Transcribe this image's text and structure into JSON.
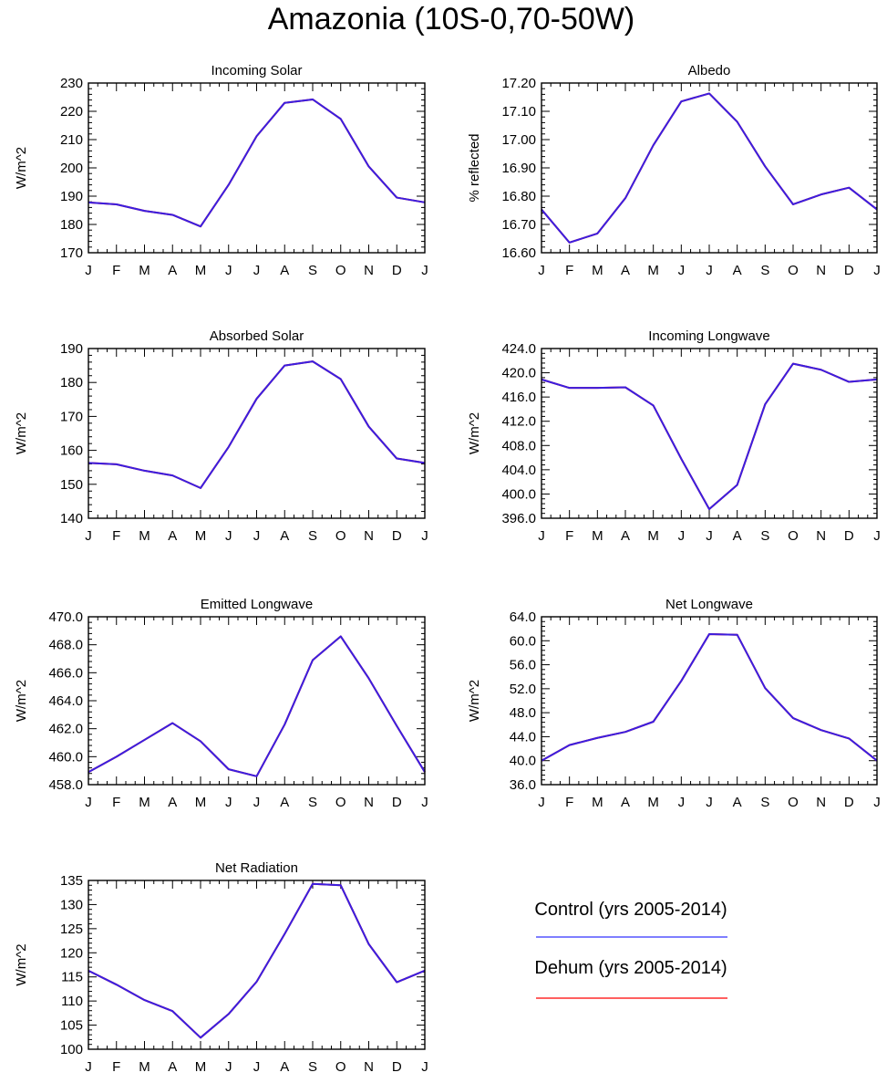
{
  "figure_title": "Amazonia (10S-0,70-50W)",
  "months": [
    "J",
    "F",
    "M",
    "A",
    "M",
    "J",
    "J",
    "A",
    "S",
    "O",
    "N",
    "D",
    "J"
  ],
  "legend": {
    "entries": [
      {
        "label": "Control (yrs 2005-2014)",
        "color": "#3333ff"
      },
      {
        "label": "Dehum (yrs 2005-2014)",
        "color": "#ff0000"
      }
    ]
  },
  "chart_data": [
    {
      "type": "line",
      "title": "Incoming Solar",
      "ylabel": "W/m^2",
      "ylim": [
        170,
        230
      ],
      "yticks": [
        170,
        180,
        190,
        200,
        210,
        220,
        230
      ],
      "ytick_labels": [
        "170",
        "180",
        "190",
        "200",
        "210",
        "220",
        "230"
      ],
      "ymajor_step": 10,
      "yminor_step": 2,
      "categories": [
        "J",
        "F",
        "M",
        "A",
        "M",
        "J",
        "J",
        "A",
        "S",
        "O",
        "N",
        "D",
        "J"
      ],
      "series": [
        {
          "name": "Control (yrs 2005-2014)",
          "color": "#3333ff",
          "values": [
            187.8,
            187.1,
            184.8,
            183.4,
            179.3,
            194.0,
            211.2,
            223.0,
            224.2,
            217.3,
            200.5,
            189.5,
            187.8
          ]
        },
        {
          "name": "Dehum (yrs 2005-2014)",
          "color": "#ff0000",
          "values": [
            187.8,
            187.1,
            184.8,
            183.4,
            179.3,
            194.0,
            211.2,
            223.0,
            224.2,
            217.3,
            200.5,
            189.5,
            187.8
          ]
        }
      ]
    },
    {
      "type": "line",
      "title": "Albedo",
      "ylabel": "% reflected",
      "ylim": [
        16.6,
        17.2
      ],
      "yticks": [
        16.6,
        16.7,
        16.8,
        16.9,
        17.0,
        17.1,
        17.2
      ],
      "ytick_labels": [
        "16.60",
        "16.70",
        "16.80",
        "16.90",
        "17.00",
        "17.10",
        "17.20"
      ],
      "ymajor_step": 0.1,
      "yminor_step": 0.02,
      "categories": [
        "J",
        "F",
        "M",
        "A",
        "M",
        "J",
        "J",
        "A",
        "S",
        "O",
        "N",
        "D",
        "J"
      ],
      "series": [
        {
          "name": "Control (yrs 2005-2014)",
          "color": "#3333ff",
          "values": [
            16.753,
            16.636,
            16.668,
            16.793,
            16.98,
            17.135,
            17.163,
            17.063,
            16.905,
            16.771,
            16.806,
            16.83,
            16.753
          ]
        },
        {
          "name": "Dehum (yrs 2005-2014)",
          "color": "#ff0000",
          "values": [
            16.753,
            16.636,
            16.668,
            16.793,
            16.98,
            17.135,
            17.163,
            17.063,
            16.905,
            16.771,
            16.806,
            16.83,
            16.753
          ]
        }
      ]
    },
    {
      "type": "line",
      "title": "Absorbed Solar",
      "ylabel": "W/m^2",
      "ylim": [
        140,
        190
      ],
      "yticks": [
        140,
        150,
        160,
        170,
        180,
        190
      ],
      "ytick_labels": [
        "140",
        "150",
        "160",
        "170",
        "180",
        "190"
      ],
      "ymajor_step": 10,
      "yminor_step": 2,
      "categories": [
        "J",
        "F",
        "M",
        "A",
        "M",
        "J",
        "J",
        "A",
        "S",
        "O",
        "N",
        "D",
        "J"
      ],
      "series": [
        {
          "name": "Control (yrs 2005-2014)",
          "color": "#3333ff",
          "values": [
            156.3,
            155.9,
            154.0,
            152.6,
            148.9,
            161.0,
            175.2,
            185.0,
            186.2,
            181.0,
            167.0,
            157.6,
            156.3
          ]
        },
        {
          "name": "Dehum (yrs 2005-2014)",
          "color": "#ff0000",
          "values": [
            156.3,
            155.9,
            154.0,
            152.6,
            148.9,
            161.0,
            175.2,
            185.0,
            186.2,
            181.0,
            167.0,
            157.6,
            156.3
          ]
        }
      ]
    },
    {
      "type": "line",
      "title": "Incoming Longwave",
      "ylabel": "W/m^2",
      "ylim": [
        396,
        424
      ],
      "yticks": [
        396,
        400,
        404,
        408,
        412,
        416,
        420,
        424
      ],
      "ytick_labels": [
        "396.0",
        "400.0",
        "404.0",
        "408.0",
        "412.0",
        "416.0",
        "420.0",
        "424.0"
      ],
      "ymajor_step": 4,
      "yminor_step": 0.8,
      "categories": [
        "J",
        "F",
        "M",
        "A",
        "M",
        "J",
        "J",
        "A",
        "S",
        "O",
        "N",
        "D",
        "J"
      ],
      "series": [
        {
          "name": "Control (yrs 2005-2014)",
          "color": "#3333ff",
          "values": [
            418.9,
            417.5,
            417.5,
            417.6,
            414.6,
            405.8,
            397.5,
            401.5,
            414.8,
            421.5,
            420.5,
            418.5,
            418.9
          ]
        },
        {
          "name": "Dehum (yrs 2005-2014)",
          "color": "#ff0000",
          "values": [
            418.9,
            417.5,
            417.5,
            417.6,
            414.6,
            405.8,
            397.5,
            401.5,
            414.8,
            421.5,
            420.5,
            418.5,
            418.9
          ]
        }
      ]
    },
    {
      "type": "line",
      "title": "Emitted Longwave",
      "ylabel": "W/m^2",
      "ylim": [
        458,
        470
      ],
      "yticks": [
        458,
        460,
        462,
        464,
        466,
        468,
        470
      ],
      "ytick_labels": [
        "458.0",
        "460.0",
        "462.0",
        "464.0",
        "466.0",
        "468.0",
        "470.0"
      ],
      "ymajor_step": 2,
      "yminor_step": 0.4,
      "categories": [
        "J",
        "F",
        "M",
        "A",
        "M",
        "J",
        "J",
        "A",
        "S",
        "O",
        "N",
        "D",
        "J"
      ],
      "series": [
        {
          "name": "Control (yrs 2005-2014)",
          "color": "#3333ff",
          "values": [
            458.9,
            460.0,
            461.2,
            462.4,
            461.1,
            459.1,
            458.6,
            462.3,
            466.9,
            468.6,
            465.6,
            462.2,
            458.9
          ]
        },
        {
          "name": "Dehum (yrs 2005-2014)",
          "color": "#ff0000",
          "values": [
            458.9,
            460.0,
            461.2,
            462.4,
            461.1,
            459.1,
            458.6,
            462.3,
            466.9,
            468.6,
            465.6,
            462.2,
            458.9
          ]
        }
      ]
    },
    {
      "type": "line",
      "title": "Net Longwave",
      "ylabel": "W/m^2",
      "ylim": [
        36,
        64
      ],
      "yticks": [
        36,
        40,
        44,
        48,
        52,
        56,
        60,
        64
      ],
      "ytick_labels": [
        "36.0",
        "40.0",
        "44.0",
        "48.0",
        "52.0",
        "56.0",
        "60.0",
        "64.0"
      ],
      "ymajor_step": 4,
      "yminor_step": 0.8,
      "categories": [
        "J",
        "F",
        "M",
        "A",
        "M",
        "J",
        "J",
        "A",
        "S",
        "O",
        "N",
        "D",
        "J"
      ],
      "series": [
        {
          "name": "Control (yrs 2005-2014)",
          "color": "#3333ff",
          "values": [
            40.0,
            42.6,
            43.8,
            44.8,
            46.5,
            53.3,
            61.1,
            61.0,
            52.1,
            47.1,
            45.1,
            43.7,
            40.0
          ]
        },
        {
          "name": "Dehum (yrs 2005-2014)",
          "color": "#ff0000",
          "values": [
            40.0,
            42.6,
            43.8,
            44.8,
            46.5,
            53.3,
            61.1,
            61.0,
            52.1,
            47.1,
            45.1,
            43.7,
            40.0
          ]
        }
      ]
    },
    {
      "type": "line",
      "title": "Net Radiation",
      "ylabel": "W/m^2",
      "ylim": [
        100,
        135
      ],
      "yticks": [
        100,
        105,
        110,
        115,
        120,
        125,
        130,
        135
      ],
      "ytick_labels": [
        "100",
        "105",
        "110",
        "115",
        "120",
        "125",
        "130",
        "135"
      ],
      "ymajor_step": 5,
      "yminor_step": 1,
      "categories": [
        "J",
        "F",
        "M",
        "A",
        "M",
        "J",
        "J",
        "A",
        "S",
        "O",
        "N",
        "D",
        "J"
      ],
      "series": [
        {
          "name": "Control (yrs 2005-2014)",
          "color": "#3333ff",
          "values": [
            116.3,
            113.4,
            110.2,
            107.9,
            102.4,
            107.3,
            114.0,
            123.9,
            134.3,
            134.0,
            121.8,
            113.9,
            116.3
          ]
        },
        {
          "name": "Dehum (yrs 2005-2014)",
          "color": "#ff0000",
          "values": [
            116.3,
            113.4,
            110.2,
            107.9,
            102.4,
            107.3,
            114.0,
            123.9,
            134.3,
            134.0,
            121.8,
            113.9,
            116.3
          ]
        }
      ]
    }
  ]
}
